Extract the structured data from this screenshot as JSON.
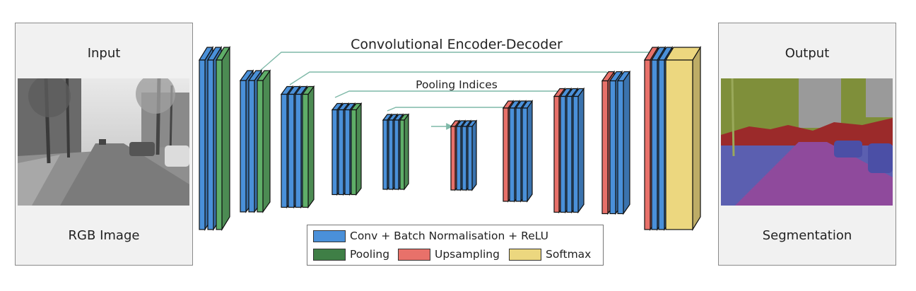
{
  "input_panel": {
    "title": "Input",
    "caption": "RGB Image"
  },
  "output_panel": {
    "title": "Output",
    "caption": "Segmentation"
  },
  "diagram": {
    "title": "Convolutional Encoder-Decoder",
    "skip_label": "Pooling Indices"
  },
  "legend": {
    "conv": "Conv + Batch Normalisation + ReLU",
    "pooling": "Pooling",
    "upsampling": "Upsampling",
    "softmax": "Softmax"
  },
  "colors": {
    "conv": "#4a90d9",
    "pooling": "#5fae68",
    "upsampling": "#e8716a",
    "softmax": "#ecd77f",
    "skip_arrow": "#7fb9a8"
  }
}
